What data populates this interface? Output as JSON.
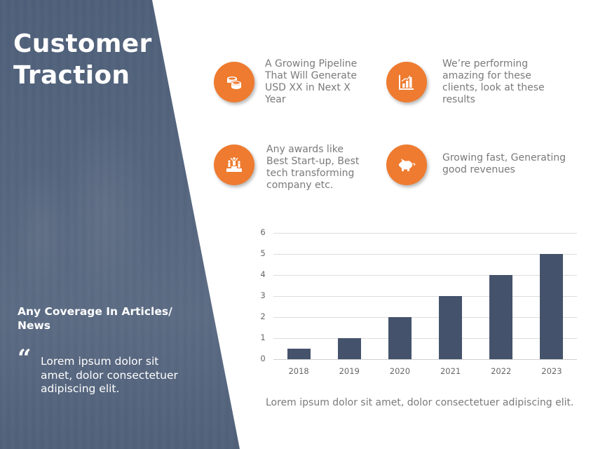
{
  "slide": {
    "title": "Customer\nTraction",
    "colors": {
      "panel": "#4f5f79",
      "accent": "#ee7b30",
      "bar": "#44536b",
      "body_text": "#7a7a7a"
    }
  },
  "left_panel": {
    "coverage_title": "Any Coverage In Articles/\nNews",
    "quote_mark": "“",
    "quote_text": "Lorem ipsum dolor sit\namet, dolor consectetuer\nadipiscing elit."
  },
  "features": [
    {
      "icon": "coins-icon",
      "text": "A Growing Pipeline\nThat Will Generate\nUSD XX in Next X\nYear"
    },
    {
      "icon": "bar-chart-growth-icon",
      "text": "We’re performing\namazing for these\nclients, look at these\nresults"
    },
    {
      "icon": "podium-winners-icon",
      "text": "Any awards like\nBest Start-up, Best\ntech transforming\ncompany etc."
    },
    {
      "icon": "piggy-bank-icon",
      "text": "Growing fast, Generating\ngood revenues"
    }
  ],
  "chart_data": {
    "type": "bar",
    "title": "",
    "xlabel": "",
    "ylabel": "",
    "categories": [
      "2018",
      "2019",
      "2020",
      "2021",
      "2022",
      "2023"
    ],
    "values": [
      0.5,
      1,
      2,
      3,
      4,
      5
    ],
    "ylim": [
      0,
      6
    ],
    "yticks": [
      "0",
      "1",
      "2",
      "3",
      "4",
      "5",
      "6"
    ],
    "grid": true,
    "legend": null,
    "bar_color": "#44536b"
  },
  "bottom_text": "Lorem ipsum dolor sit amet, dolor consectetuer adipiscing elit."
}
